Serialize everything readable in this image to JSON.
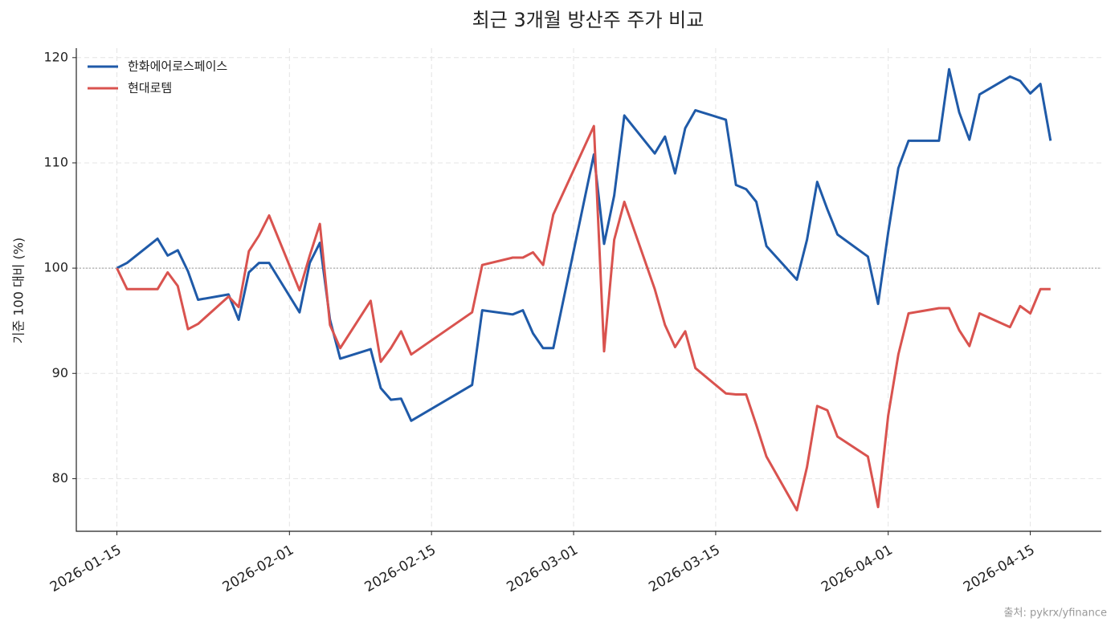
{
  "chart_data": {
    "type": "line",
    "title": "최근 3개월 방산주 주가 비교",
    "y_label": "기준 100 대비 (%)",
    "source": "출처: pykrx/yfinance",
    "x": [
      "2026-01-15",
      "2026-01-16",
      "2026-01-19",
      "2026-01-20",
      "2026-01-21",
      "2026-01-22",
      "2026-01-23",
      "2026-01-26",
      "2026-01-27",
      "2026-01-28",
      "2026-01-29",
      "2026-01-30",
      "2026-02-02",
      "2026-02-03",
      "2026-02-04",
      "2026-02-05",
      "2026-02-06",
      "2026-02-09",
      "2026-02-10",
      "2026-02-11",
      "2026-02-12",
      "2026-02-13",
      "2026-02-19",
      "2026-02-20",
      "2026-02-23",
      "2026-02-24",
      "2026-02-25",
      "2026-02-26",
      "2026-02-27",
      "2026-03-03",
      "2026-03-04",
      "2026-03-05",
      "2026-03-06",
      "2026-03-09",
      "2026-03-10",
      "2026-03-11",
      "2026-03-12",
      "2026-03-13",
      "2026-03-16",
      "2026-03-17",
      "2026-03-18",
      "2026-03-19",
      "2026-03-20",
      "2026-03-23",
      "2026-03-24",
      "2026-03-25",
      "2026-03-26",
      "2026-03-27",
      "2026-03-30",
      "2026-03-31",
      "2026-04-01",
      "2026-04-02",
      "2026-04-03",
      "2026-04-06",
      "2026-04-07",
      "2026-04-08",
      "2026-04-09",
      "2026-04-10",
      "2026-04-13",
      "2026-04-14",
      "2026-04-15",
      "2026-04-16",
      "2026-04-17"
    ],
    "series": [
      {
        "name": "한화에어로스페이스",
        "color": "#1f5aa8",
        "values": [
          100,
          100.5,
          102.8,
          101.2,
          101.7,
          99.7,
          97.0,
          97.5,
          95.1,
          99.6,
          100.5,
          100.5,
          95.8,
          100.5,
          102.4,
          95.1,
          91.4,
          92.3,
          88.6,
          87.5,
          87.6,
          85.5,
          88.9,
          96.0,
          95.6,
          96.0,
          93.8,
          92.4,
          92.4,
          110.8,
          102.3,
          106.9,
          114.5,
          110.9,
          112.5,
          109.0,
          113.3,
          115.0,
          114.1,
          107.9,
          107.5,
          106.3,
          102.1,
          98.9,
          102.7,
          108.2,
          105.6,
          103.2,
          101.1,
          96.6,
          103.4,
          109.5,
          112.1,
          112.1,
          118.9,
          114.8,
          112.2,
          116.5,
          118.2,
          117.8,
          116.6,
          117.5,
          112.1
        ]
      },
      {
        "name": "현대로템",
        "color": "#d9534f",
        "values": [
          100,
          98.0,
          98.0,
          99.6,
          98.3,
          94.2,
          94.7,
          97.3,
          96.3,
          101.6,
          103.1,
          105.0,
          97.9,
          101.2,
          104.2,
          94.6,
          92.4,
          96.9,
          91.1,
          92.4,
          94.0,
          91.8,
          95.8,
          100.3,
          101.0,
          101.0,
          101.5,
          100.3,
          105.1,
          113.5,
          92.1,
          102.7,
          106.3,
          98.0,
          94.6,
          92.5,
          94.0,
          90.5,
          88.1,
          88.0,
          88.0,
          85.1,
          82.1,
          77.0,
          81.1,
          86.9,
          86.5,
          84.0,
          82.1,
          77.3,
          86.0,
          91.8,
          95.7,
          96.2,
          96.2,
          94.1,
          92.6,
          95.7,
          94.4,
          96.4,
          95.7,
          98.0,
          98.0
        ]
      }
    ],
    "xlim": [
      "2026-01-11",
      "2026-04-22"
    ],
    "xticks": [
      "2026-01-15",
      "2026-02-01",
      "2026-02-15",
      "2026-03-01",
      "2026-03-15",
      "2026-04-01",
      "2026-04-15"
    ],
    "ylim": [
      75,
      120.9
    ],
    "yticks": [
      80,
      90,
      100,
      110,
      120
    ],
    "reference_line": 100,
    "grid": true,
    "legend": "upper left"
  }
}
